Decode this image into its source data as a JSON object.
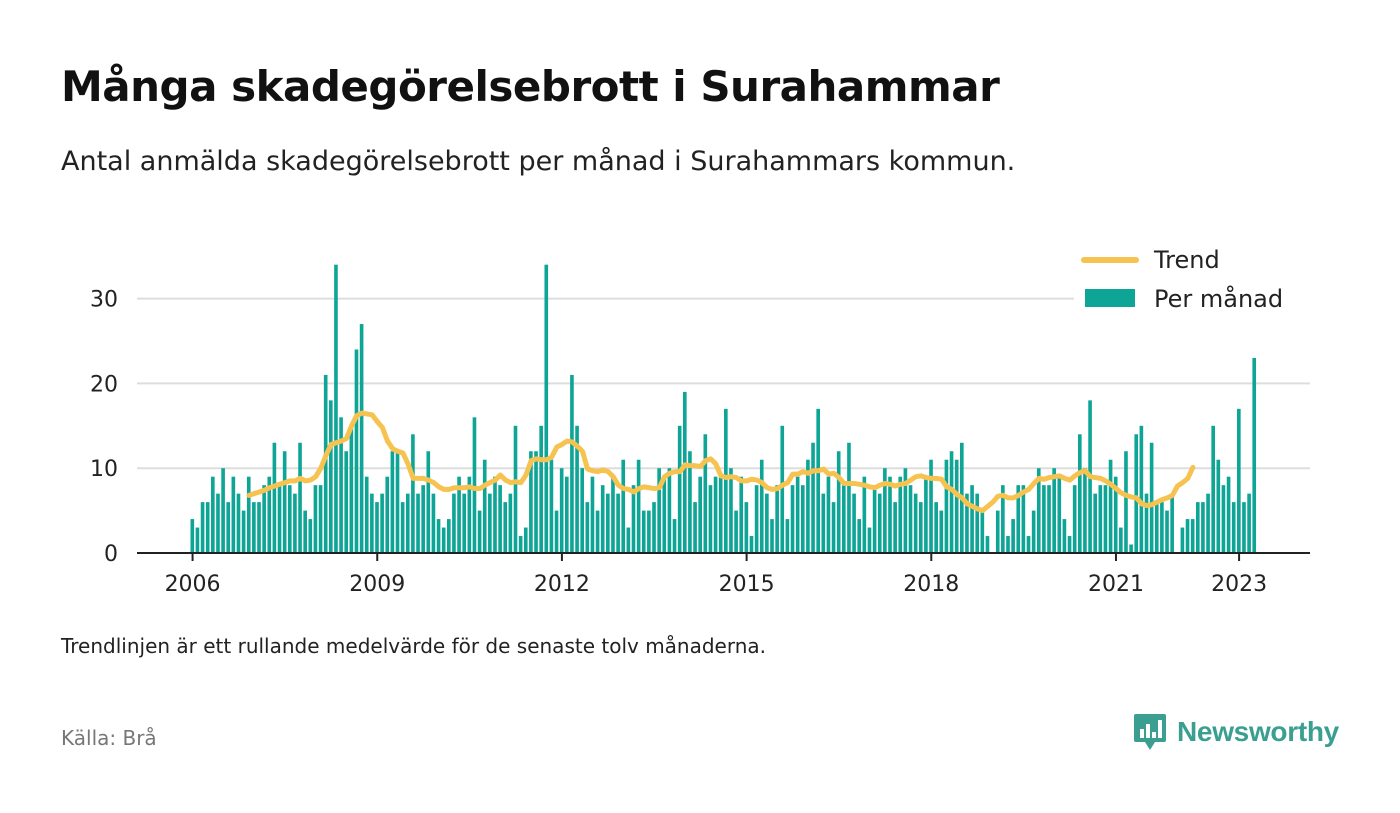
{
  "header": {
    "title": "Många skadegörelsebrott i Surahammar",
    "subtitle": "Antal anmälda skadegörelsebrott per månad i Surahammars kommun."
  },
  "footer": {
    "note": "Trendlinjen är ett rullande medelvärde för de senaste tolv månaderna.",
    "source": "Källa: Brå",
    "brand": "Newsworthy"
  },
  "colors": {
    "bars": "#0ea596",
    "trend": "#f6c250",
    "grid": "#dddddd",
    "axis": "#222222",
    "brand": "#3a9e91"
  },
  "chart_data": {
    "type": "bar",
    "title": "Många skadegörelsebrott i Surahammar",
    "subtitle": "Antal anmälda skadegörelsebrott per månad i Surahammars kommun.",
    "xlabel": "",
    "ylabel": "",
    "ylim": [
      0,
      36
    ],
    "yticks": [
      0,
      10,
      20,
      30
    ],
    "xticks": [
      "2006",
      "2009",
      "2012",
      "2015",
      "2018",
      "2021",
      "2023"
    ],
    "grid": true,
    "legend": {
      "position": "top-right",
      "entries": [
        "Trend",
        "Per månad"
      ]
    },
    "start_month": "2006-01",
    "series": [
      {
        "name": "Per månad",
        "type": "bar",
        "values": [
          4,
          3,
          6,
          6,
          9,
          7,
          10,
          6,
          9,
          7,
          5,
          9,
          6,
          6,
          8,
          9,
          13,
          8,
          12,
          8,
          7,
          13,
          5,
          4,
          8,
          8,
          21,
          18,
          34,
          16,
          12,
          15,
          24,
          27,
          9,
          7,
          6,
          7,
          9,
          12,
          12,
          6,
          7,
          14,
          7,
          8,
          12,
          7,
          4,
          3,
          4,
          7,
          9,
          7,
          9,
          16,
          5,
          11,
          7,
          9,
          8,
          6,
          7,
          15,
          2,
          3,
          12,
          12,
          15,
          34,
          11,
          5,
          10,
          9,
          21,
          15,
          10,
          6,
          9,
          5,
          8,
          7,
          9,
          7,
          11,
          3,
          8,
          11,
          5,
          5,
          6,
          10,
          9,
          10,
          4,
          15,
          19,
          12,
          6,
          9,
          14,
          8,
          9,
          9,
          17,
          10,
          5,
          9,
          6,
          2,
          8,
          11,
          7,
          4,
          8,
          15,
          4,
          8,
          9,
          8,
          11,
          13,
          17,
          7,
          9,
          6,
          12,
          8,
          13,
          7,
          4,
          9,
          3,
          8,
          7,
          10,
          9,
          6,
          9,
          10,
          8,
          7,
          6,
          9,
          11,
          6,
          5,
          11,
          12,
          11,
          13,
          7,
          8,
          7,
          5,
          2,
          0,
          5,
          8,
          2,
          4,
          8,
          8,
          2,
          5,
          10,
          8,
          8,
          10,
          9,
          4,
          2,
          8,
          14,
          10,
          18,
          7,
          8,
          8,
          11,
          9,
          3,
          12,
          1,
          14,
          15,
          7,
          13,
          6,
          6,
          5,
          7,
          0,
          3,
          4,
          4,
          6,
          6,
          7,
          15,
          11,
          8,
          9,
          6,
          17,
          6,
          7,
          23
        ]
      },
      {
        "name": "Trend",
        "type": "line",
        "start_index": 11,
        "values": [
          6.8,
          7.0,
          7.2,
          7.4,
          7.7,
          7.9,
          8.1,
          8.3,
          8.5,
          8.5,
          8.8,
          8.5,
          8.6,
          9.0,
          10.0,
          11.5,
          12.8,
          13.0,
          13.2,
          13.5,
          15.0,
          16.2,
          16.5,
          16.4,
          16.3,
          15.5,
          14.8,
          13.2,
          12.3,
          12.0,
          11.8,
          10.5,
          8.8,
          8.8,
          8.8,
          8.6,
          8.3,
          7.8,
          7.5,
          7.5,
          7.7,
          7.7,
          7.7,
          7.8,
          7.6,
          7.6,
          8.0,
          8.3,
          8.6,
          9.2,
          8.6,
          8.3,
          8.4,
          8.3,
          9.2,
          10.9,
          11.1,
          11.0,
          11.0,
          11.3,
          12.5,
          12.8,
          13.2,
          13.1,
          12.6,
          12.0,
          9.9,
          9.7,
          9.6,
          9.8,
          9.6,
          9.0,
          8.0,
          7.6,
          7.5,
          7.2,
          7.6,
          7.8,
          7.7,
          7.6,
          7.7,
          9.0,
          9.4,
          9.6,
          9.6,
          10.4,
          10.3,
          10.3,
          10.2,
          10.9,
          11.1,
          10.5,
          9.1,
          8.9,
          9.0,
          8.9,
          8.5,
          8.5,
          8.7,
          8.6,
          8.3,
          7.7,
          7.5,
          7.6,
          8.0,
          8.3,
          9.3,
          9.3,
          9.6,
          9.4,
          9.7,
          9.7,
          9.9,
          9.3,
          9.4,
          8.9,
          8.2,
          8.2,
          8.2,
          8.1,
          8.0,
          7.8,
          7.7,
          8.0,
          8.2,
          8.1,
          7.9,
          8.1,
          8.2,
          8.6,
          9.0,
          9.1,
          8.9,
          8.8,
          8.8,
          8.7,
          7.8,
          7.5,
          6.9,
          6.5,
          5.8,
          5.5,
          5.2,
          5.0,
          5.5,
          6.0,
          6.7,
          6.8,
          6.5,
          6.5,
          6.8,
          7.2,
          7.5,
          8.2,
          8.8,
          8.7,
          8.9,
          9.0,
          9.1,
          8.8,
          8.6,
          9.1,
          9.5,
          9.7,
          9.0,
          8.9,
          8.8,
          8.5,
          8.1,
          7.6,
          7.1,
          6.8,
          6.6,
          6.5,
          5.8,
          5.6,
          5.7,
          6.0,
          6.3,
          6.5,
          6.8,
          7.9,
          8.3,
          8.8,
          10.1
        ]
      }
    ]
  }
}
